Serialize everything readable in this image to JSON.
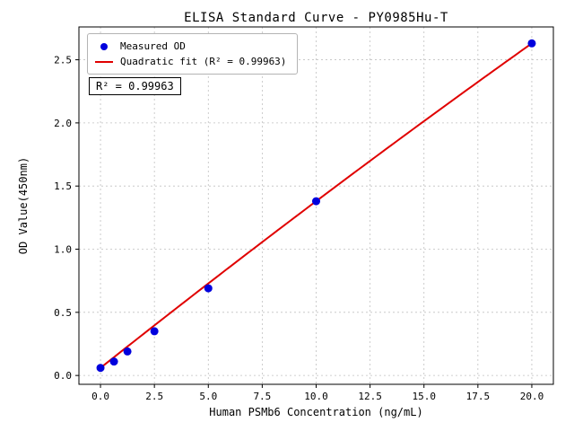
{
  "chart_data": {
    "type": "scatter",
    "title": "ELISA Standard Curve - PY0985Hu-T",
    "xlabel": "Human PSMb6 Concentration (ng/mL)",
    "ylabel": "OD Value(450nm)",
    "x_ticks": [
      0.0,
      2.5,
      5.0,
      7.5,
      10.0,
      12.5,
      15.0,
      17.5,
      20.0
    ],
    "x_tick_labels": [
      "0.0",
      "2.5",
      "5.0",
      "7.5",
      "10.0",
      "12.5",
      "15.0",
      "17.5",
      "20.0"
    ],
    "y_ticks": [
      0.0,
      0.5,
      1.0,
      1.5,
      2.0,
      2.5
    ],
    "y_tick_labels": [
      "0.0",
      "0.5",
      "1.0",
      "1.5",
      "2.0",
      "2.5"
    ],
    "xlim": [
      -1.0,
      21.0
    ],
    "ylim": [
      -0.07,
      2.76
    ],
    "grid": true,
    "points": {
      "name": "Measured OD",
      "x": [
        0,
        0.625,
        1.25,
        2.5,
        5,
        10,
        20
      ],
      "y": [
        0.06,
        0.11,
        0.19,
        0.35,
        0.69,
        1.38,
        2.63
      ],
      "color": "#0000dd"
    },
    "fit": {
      "name": "Quadratic fit (R² = 0.99963)",
      "coeffs": {
        "a": -0.00035,
        "b": 0.1355,
        "c": 0.06
      },
      "range": [
        0,
        20
      ],
      "color": "#e00000"
    },
    "legend": {
      "position": "upper left",
      "entries": [
        {
          "label": "Measured OD",
          "marker": "dot",
          "color": "#0000dd"
        },
        {
          "label": "Quadratic fit (R² = 0.99963)",
          "marker": "line",
          "color": "#e00000"
        }
      ]
    },
    "annotation": "R² = 0.99963",
    "grid_color": "#c0c0c0",
    "axis_color": "#000000"
  }
}
